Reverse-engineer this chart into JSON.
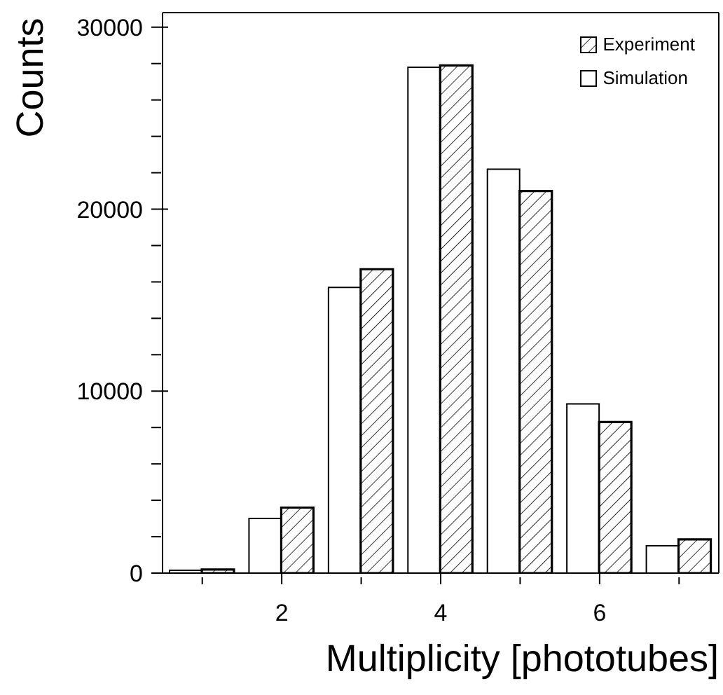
{
  "chart_data": {
    "type": "bar",
    "xlabel": "Multiplicity [phototubes]",
    "ylabel": "Counts",
    "x": [
      1,
      2,
      3,
      4,
      5,
      6,
      7
    ],
    "series": [
      {
        "name": "Simulation",
        "color": "#ffffff",
        "values": [
          150,
          3000,
          15700,
          27800,
          22200,
          9300,
          1500
        ]
      },
      {
        "name": "Experiment",
        "color": "#000000",
        "values": [
          200,
          3600,
          16700,
          27900,
          21000,
          8300,
          1850
        ]
      }
    ],
    "xlim": [
      0.5,
      7.5
    ],
    "xticks": [
      {
        "value": 1,
        "label": null
      },
      2,
      {
        "value": 3,
        "label": null
      },
      4,
      {
        "value": 5,
        "label": null
      },
      6,
      {
        "value": 7,
        "label": null
      }
    ],
    "ylim": [
      0,
      30800
    ],
    "yticks": [
      0,
      {
        "value": 2000,
        "label": null
      },
      {
        "value": 4000,
        "label": null
      },
      {
        "value": 6000,
        "label": null
      },
      {
        "value": 8000,
        "label": null
      },
      10000,
      {
        "value": 12000,
        "label": null
      },
      {
        "value": 14000,
        "label": null
      },
      {
        "value": 16000,
        "label": null
      },
      {
        "value": 18000,
        "label": null
      },
      20000,
      {
        "value": 22000,
        "label": null
      },
      {
        "value": 24000,
        "label": null
      },
      {
        "value": 26000,
        "label": null
      },
      {
        "value": 28000,
        "label": null
      },
      30000
    ],
    "grid": false,
    "legend": "top right"
  }
}
